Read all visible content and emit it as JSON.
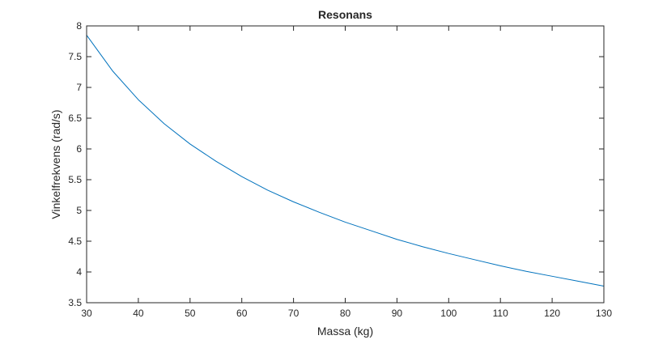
{
  "chart_data": {
    "type": "line",
    "title": "Resonans",
    "xlabel": "Massa (kg)",
    "ylabel": "Vinkelfrekvens (rad/s)",
    "xlim": [
      30,
      130
    ],
    "ylim": [
      3.5,
      8
    ],
    "xticks": [
      30,
      40,
      50,
      60,
      70,
      80,
      90,
      100,
      110,
      120,
      130
    ],
    "xtick_labels": [
      "30",
      "40",
      "50",
      "60",
      "70",
      "80",
      "90",
      "100",
      "110",
      "120",
      "130"
    ],
    "yticks": [
      3.5,
      4,
      4.5,
      5,
      5.5,
      6,
      6.5,
      7,
      7.5,
      8
    ],
    "ytick_labels": [
      "3.5",
      "4",
      "4.5",
      "5",
      "5.5",
      "6",
      "6.5",
      "7",
      "7.5",
      "8"
    ],
    "grid": false,
    "box": true,
    "series": [
      {
        "color": "#0072BD",
        "x": [
          30,
          35,
          40,
          45,
          50,
          55,
          60,
          65,
          70,
          75,
          80,
          85,
          90,
          95,
          100,
          105,
          110,
          115,
          120,
          125,
          130
        ],
        "y": [
          7.85,
          7.27,
          6.8,
          6.41,
          6.08,
          5.8,
          5.55,
          5.33,
          5.14,
          4.97,
          4.81,
          4.67,
          4.53,
          4.41,
          4.3,
          4.2,
          4.1,
          4.01,
          3.93,
          3.85,
          3.77
        ]
      }
    ]
  }
}
